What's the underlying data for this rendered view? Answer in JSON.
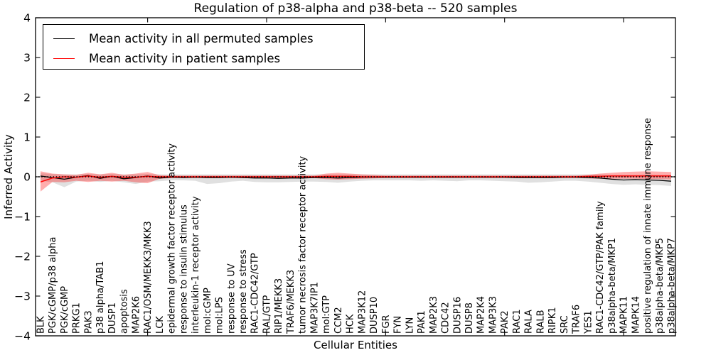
{
  "chart_data": {
    "type": "line",
    "title": "Regulation of p38-alpha and p38-beta -- 520 samples",
    "xlabel": "Cellular Entities",
    "ylabel": "Inferred Activity",
    "ylim": [
      -4,
      4
    ],
    "yticks": [
      -4,
      -3,
      -2,
      -1,
      0,
      1,
      2,
      3,
      4
    ],
    "xtick_mark_category_indices": [
      9,
      19,
      29,
      39,
      49
    ],
    "grid": false,
    "legend_position": "upper left",
    "zero_reference_line": {
      "y": 0,
      "style": "dotted",
      "color": "#000000"
    },
    "categories": [
      "BLK",
      "PGK/cGMP/p38 alpha",
      "PGK/cGMP",
      "PRKG1",
      "PAK3",
      "p38 alpha/TAB1",
      "DUSP1",
      "apoptosis",
      "MAP2K6",
      "RAC1/OSM/MEKK3/MKK3",
      "LCK",
      "epidermal growth factor receptor activity",
      "response to insulin stimulus",
      "interleukin-1 receptor activity",
      "mol:cGMP",
      "mol:LPS",
      "response to UV",
      "response to stress",
      "RAC1-CDC42/GTP",
      "RAL/GTP",
      "RIP1/MEKK3",
      "TRAF6/MEKK3",
      "tumor necrosis factor receptor activity",
      "MAP3K7IP1",
      "mol:GTP",
      "CCM2",
      "HCK",
      "MAP3K12",
      "DUSP10",
      "FGR",
      "FYN",
      "LYN",
      "PAK1",
      "MAP2K3",
      "CDC42",
      "DUSP16",
      "DUSP8",
      "MAP2K4",
      "MAP3K3",
      "PAK2",
      "RAC1",
      "RALA",
      "RALB",
      "RIPK1",
      "SRC",
      "TRAF6",
      "YES1",
      "RAC1-CDC42/GTP/PAK family",
      "p38alpha-beta/MKP1",
      "MAPK11",
      "MAPK14",
      "positive regulation of innate immune response",
      "p38alpha-beta/MKP5",
      "p38alpha-beta/MKP7"
    ],
    "series": [
      {
        "name": "Mean activity in all permuted samples",
        "color": "#000000",
        "band_color": "#999999",
        "band_opacity": 0.3,
        "values": [
          0.02,
          -0.02,
          -0.06,
          -0.01,
          0.03,
          -0.04,
          0.01,
          -0.05,
          -0.02,
          0.02,
          -0.03,
          -0.01,
          -0.02,
          -0.01,
          -0.02,
          -0.02,
          -0.01,
          -0.02,
          -0.03,
          -0.03,
          -0.04,
          -0.03,
          -0.03,
          -0.02,
          -0.02,
          -0.03,
          -0.02,
          -0.01,
          -0.01,
          -0.01,
          -0.01,
          -0.01,
          -0.01,
          -0.01,
          -0.01,
          -0.01,
          -0.01,
          -0.01,
          -0.01,
          -0.01,
          -0.02,
          -0.02,
          -0.02,
          -0.02,
          -0.01,
          -0.01,
          -0.02,
          -0.03,
          -0.06,
          -0.08,
          -0.07,
          -0.08,
          -0.09,
          -0.11
        ],
        "band_lower": [
          -0.1,
          -0.14,
          -0.26,
          -0.12,
          -0.1,
          -0.13,
          -0.1,
          -0.14,
          -0.18,
          -0.12,
          -0.11,
          -0.09,
          -0.09,
          -0.1,
          -0.18,
          -0.16,
          -0.12,
          -0.1,
          -0.13,
          -0.14,
          -0.14,
          -0.13,
          -0.12,
          -0.12,
          -0.13,
          -0.15,
          -0.12,
          -0.1,
          -0.09,
          -0.09,
          -0.09,
          -0.09,
          -0.1,
          -0.09,
          -0.1,
          -0.11,
          -0.09,
          -0.09,
          -0.1,
          -0.11,
          -0.12,
          -0.15,
          -0.14,
          -0.12,
          -0.1,
          -0.1,
          -0.12,
          -0.15,
          -0.18,
          -0.2,
          -0.19,
          -0.2,
          -0.21,
          -0.23
        ],
        "band_upper": [
          0.09,
          0.07,
          0.06,
          0.06,
          0.07,
          0.06,
          0.07,
          0.06,
          0.06,
          0.07,
          0.06,
          0.06,
          0.06,
          0.06,
          0.06,
          0.06,
          0.06,
          0.06,
          0.06,
          0.06,
          0.06,
          0.06,
          0.06,
          0.06,
          0.06,
          0.06,
          0.06,
          0.06,
          0.06,
          0.06,
          0.06,
          0.06,
          0.06,
          0.06,
          0.06,
          0.06,
          0.06,
          0.06,
          0.06,
          0.06,
          0.06,
          0.06,
          0.06,
          0.06,
          0.06,
          0.06,
          0.06,
          0.06,
          0.05,
          0.05,
          0.05,
          0.06,
          0.05,
          0.05
        ]
      },
      {
        "name": "Mean activity in patient samples",
        "color": "#ff0000",
        "band_color": "#ff0000",
        "band_opacity": 0.32,
        "values": [
          -0.13,
          -0.03,
          0.0,
          -0.01,
          0.02,
          -0.01,
          0.01,
          -0.01,
          -0.01,
          0.01,
          0.0,
          0.0,
          0.0,
          0.0,
          0.0,
          0.0,
          0.0,
          0.0,
          0.0,
          0.0,
          0.0,
          0.0,
          0.0,
          0.0,
          0.01,
          0.01,
          0.01,
          0.0,
          0.0,
          0.0,
          0.0,
          0.0,
          0.0,
          0.0,
          0.0,
          0.0,
          0.0,
          0.0,
          0.0,
          0.0,
          0.0,
          0.0,
          0.0,
          0.0,
          0.0,
          0.0,
          0.01,
          0.01,
          0.02,
          0.02,
          0.02,
          0.02,
          0.02,
          0.02
        ],
        "band_lower": [
          -0.37,
          -0.13,
          -0.14,
          -0.1,
          -0.13,
          -0.1,
          -0.12,
          -0.1,
          -0.14,
          -0.16,
          -0.05,
          -0.03,
          -0.03,
          -0.03,
          -0.03,
          -0.03,
          -0.03,
          -0.03,
          -0.03,
          -0.03,
          -0.03,
          -0.03,
          -0.03,
          -0.03,
          -0.06,
          -0.07,
          -0.06,
          -0.05,
          -0.04,
          -0.03,
          -0.03,
          -0.03,
          -0.03,
          -0.03,
          -0.03,
          -0.03,
          -0.03,
          -0.03,
          -0.03,
          -0.03,
          -0.03,
          -0.03,
          -0.03,
          -0.03,
          -0.03,
          -0.03,
          -0.04,
          -0.05,
          -0.05,
          -0.05,
          -0.05,
          -0.06,
          -0.06,
          -0.07
        ],
        "band_upper": [
          0.14,
          0.08,
          0.06,
          0.05,
          0.1,
          0.06,
          0.1,
          0.05,
          0.08,
          0.12,
          0.04,
          0.03,
          0.03,
          0.03,
          0.03,
          0.03,
          0.03,
          0.03,
          0.03,
          0.03,
          0.03,
          0.03,
          0.03,
          0.03,
          0.08,
          0.1,
          0.08,
          0.06,
          0.05,
          0.03,
          0.03,
          0.03,
          0.03,
          0.03,
          0.03,
          0.03,
          0.03,
          0.03,
          0.03,
          0.03,
          0.03,
          0.03,
          0.03,
          0.03,
          0.03,
          0.03,
          0.05,
          0.08,
          0.1,
          0.12,
          0.13,
          0.14,
          0.13,
          0.12
        ]
      }
    ]
  }
}
